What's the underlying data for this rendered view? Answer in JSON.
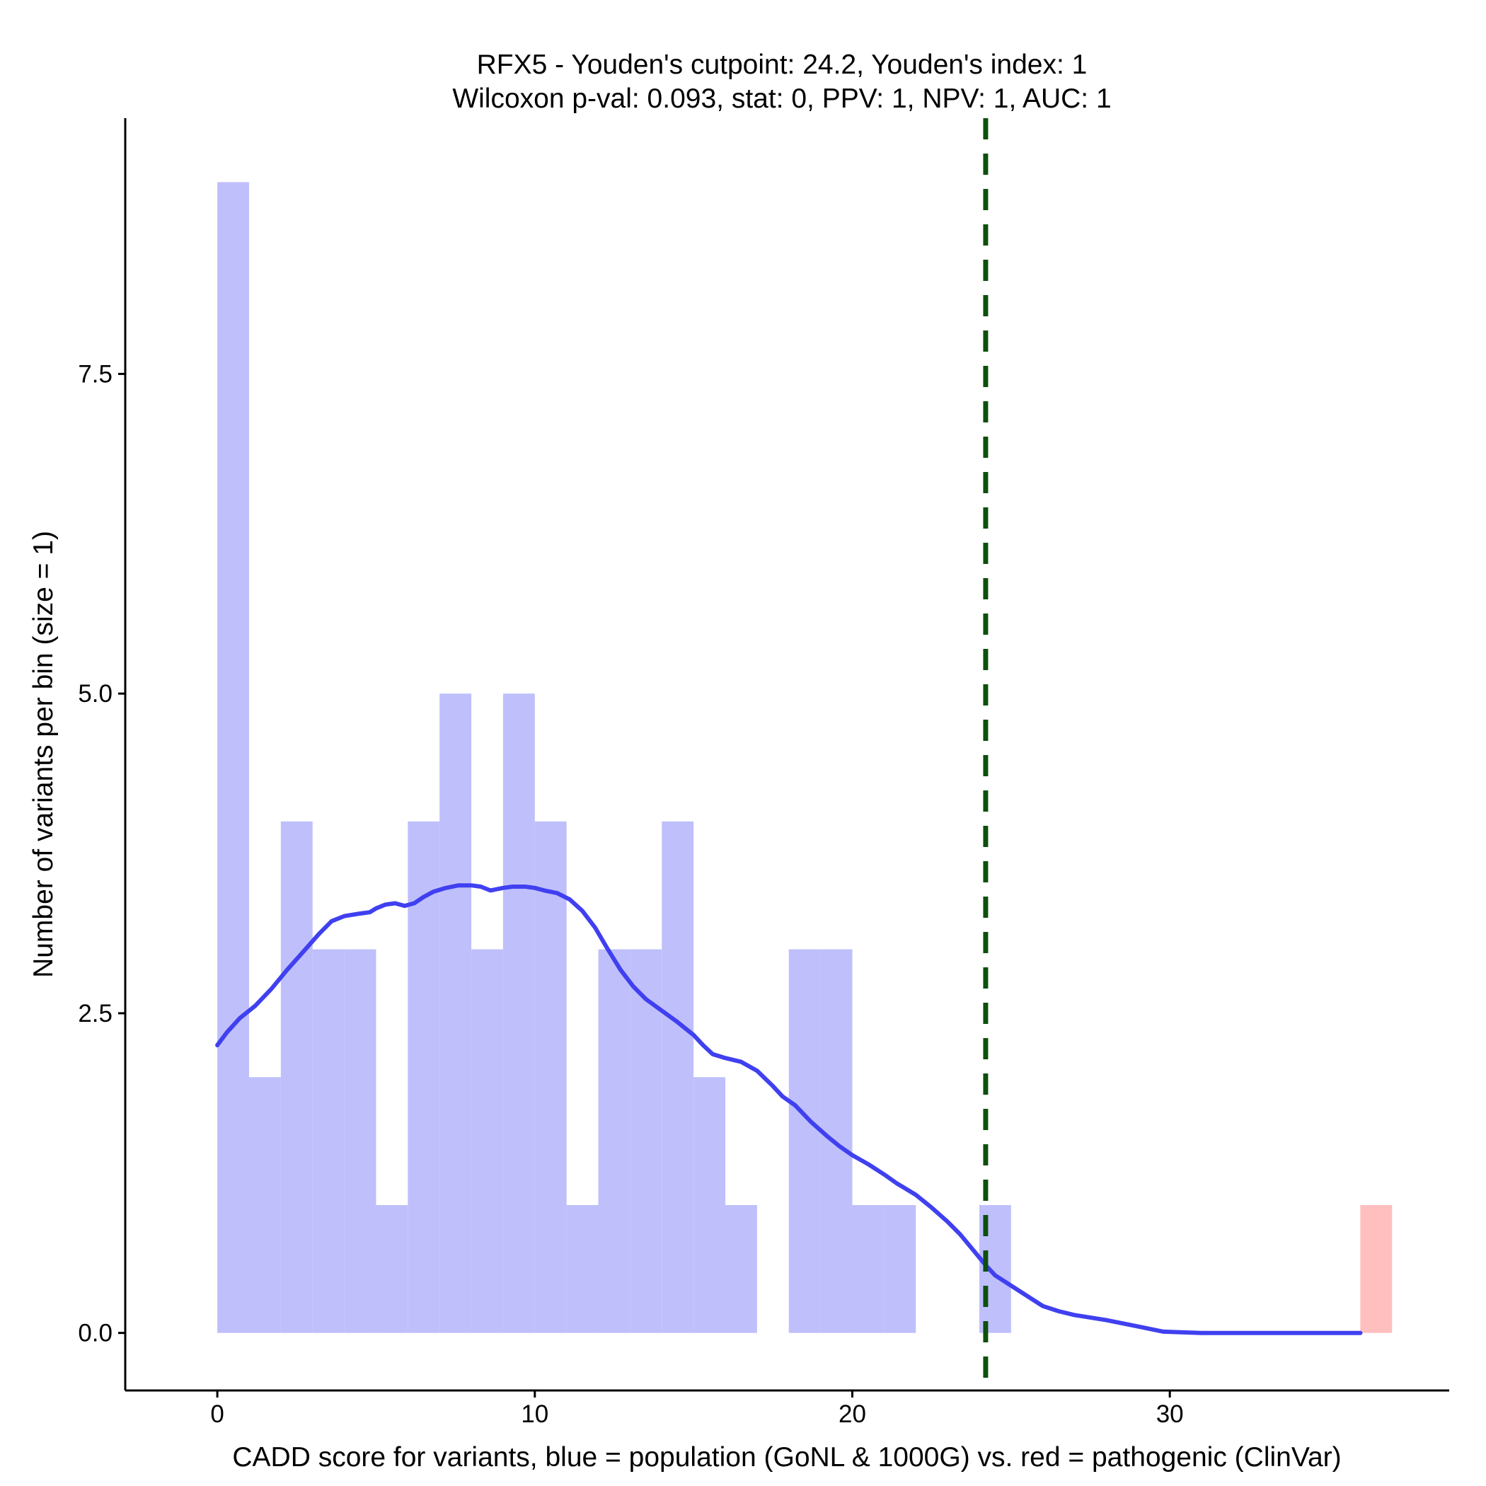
{
  "chart_data": {
    "type": "bar",
    "title_lines": [
      "RFX5 - Youden's cutpoint: 24.2, Youden's index: 1",
      "Wilcoxon p-val: 0.093, stat: 0, PPV: 1, NPV: 1, AUC: 1"
    ],
    "xlabel": "CADD score for variants, blue = population (GoNL & 1000G) vs. red = pathogenic (ClinVar)",
    "ylabel": "Number of variants per bin (size = 1)",
    "xlim": [
      -2.9,
      38.8
    ],
    "ylim": [
      -0.45,
      9.5
    ],
    "x_ticks": [
      0,
      10,
      20,
      30
    ],
    "x_tick_labels": [
      "0",
      "10",
      "20",
      "30"
    ],
    "y_ticks": [
      0,
      2.5,
      5,
      7.5
    ],
    "y_tick_labels": [
      "0.0",
      "2.5",
      "5.0",
      "7.5"
    ],
    "bin_width": 1,
    "series": [
      {
        "name": "population (GoNL & 1000G)",
        "color": "#bfbffc",
        "bins": [
          {
            "x0": 0,
            "count": 9
          },
          {
            "x0": 1,
            "count": 2
          },
          {
            "x0": 2,
            "count": 4
          },
          {
            "x0": 3,
            "count": 3
          },
          {
            "x0": 4,
            "count": 3
          },
          {
            "x0": 5,
            "count": 1
          },
          {
            "x0": 6,
            "count": 4
          },
          {
            "x0": 7,
            "count": 5
          },
          {
            "x0": 8,
            "count": 3
          },
          {
            "x0": 9,
            "count": 5
          },
          {
            "x0": 10,
            "count": 4
          },
          {
            "x0": 11,
            "count": 1
          },
          {
            "x0": 12,
            "count": 3
          },
          {
            "x0": 13,
            "count": 3
          },
          {
            "x0": 14,
            "count": 4
          },
          {
            "x0": 15,
            "count": 2
          },
          {
            "x0": 16,
            "count": 1
          },
          {
            "x0": 18,
            "count": 3
          },
          {
            "x0": 19,
            "count": 3
          },
          {
            "x0": 20,
            "count": 1
          },
          {
            "x0": 21,
            "count": 1
          },
          {
            "x0": 24,
            "count": 1
          }
        ]
      },
      {
        "name": "pathogenic (ClinVar)",
        "color": "#ffbfbf",
        "bins": [
          {
            "x0": 36,
            "count": 1
          }
        ]
      }
    ],
    "density_curve": {
      "name": "population density",
      "color": "#4040f0",
      "points": [
        [
          0,
          2.25
        ],
        [
          0.3,
          2.35
        ],
        [
          0.7,
          2.46
        ],
        [
          1.2,
          2.56
        ],
        [
          1.7,
          2.69
        ],
        [
          2.2,
          2.84
        ],
        [
          2.7,
          2.98
        ],
        [
          3.2,
          3.12
        ],
        [
          3.6,
          3.22
        ],
        [
          4.0,
          3.26
        ],
        [
          4.5,
          3.28
        ],
        [
          4.8,
          3.29
        ],
        [
          5.0,
          3.32
        ],
        [
          5.3,
          3.35
        ],
        [
          5.6,
          3.36
        ],
        [
          5.9,
          3.34
        ],
        [
          6.2,
          3.36
        ],
        [
          6.5,
          3.41
        ],
        [
          6.8,
          3.45
        ],
        [
          7.2,
          3.48
        ],
        [
          7.6,
          3.5
        ],
        [
          8.0,
          3.5
        ],
        [
          8.3,
          3.49
        ],
        [
          8.6,
          3.46
        ],
        [
          9.0,
          3.48
        ],
        [
          9.3,
          3.49
        ],
        [
          9.7,
          3.49
        ],
        [
          10.0,
          3.48
        ],
        [
          10.3,
          3.46
        ],
        [
          10.7,
          3.44
        ],
        [
          11.1,
          3.39
        ],
        [
          11.5,
          3.3
        ],
        [
          11.9,
          3.17
        ],
        [
          12.3,
          3.0
        ],
        [
          12.7,
          2.84
        ],
        [
          13.1,
          2.71
        ],
        [
          13.5,
          2.61
        ],
        [
          14.0,
          2.52
        ],
        [
          14.5,
          2.43
        ],
        [
          15.0,
          2.33
        ],
        [
          15.3,
          2.25
        ],
        [
          15.6,
          2.18
        ],
        [
          16.0,
          2.15
        ],
        [
          16.5,
          2.12
        ],
        [
          17.0,
          2.05
        ],
        [
          17.5,
          1.93
        ],
        [
          17.8,
          1.85
        ],
        [
          18.2,
          1.78
        ],
        [
          18.7,
          1.65
        ],
        [
          19.2,
          1.54
        ],
        [
          19.6,
          1.46
        ],
        [
          20.0,
          1.39
        ],
        [
          20.5,
          1.32
        ],
        [
          21.0,
          1.24
        ],
        [
          21.4,
          1.17
        ],
        [
          22.0,
          1.08
        ],
        [
          22.5,
          0.98
        ],
        [
          23.0,
          0.87
        ],
        [
          23.4,
          0.77
        ],
        [
          23.8,
          0.65
        ],
        [
          24.2,
          0.53
        ],
        [
          24.5,
          0.45
        ],
        [
          25.0,
          0.37
        ],
        [
          25.5,
          0.29
        ],
        [
          26.0,
          0.21
        ],
        [
          26.5,
          0.17
        ],
        [
          27.0,
          0.14
        ],
        [
          28.0,
          0.1
        ],
        [
          29.0,
          0.05
        ],
        [
          29.8,
          0.01
        ],
        [
          31.0,
          0.0
        ],
        [
          33.0,
          0.0
        ],
        [
          36.0,
          0.0
        ]
      ]
    },
    "cutpoint": {
      "label": "Youden's cutpoint",
      "x": 24.2,
      "color": "#0d500d",
      "style": "dashed"
    }
  }
}
